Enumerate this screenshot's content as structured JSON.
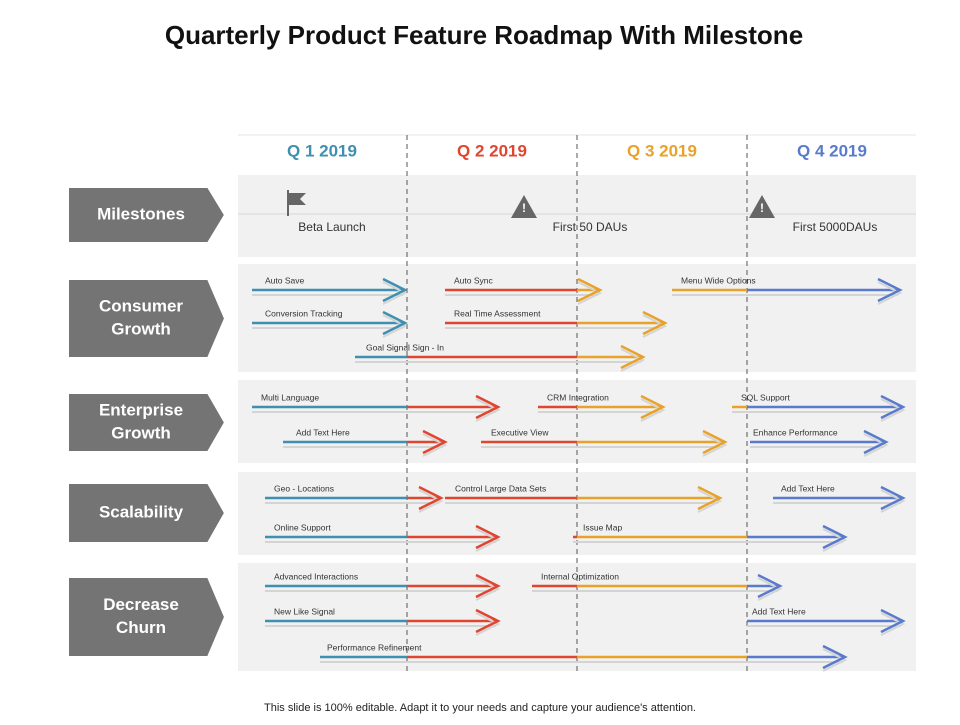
{
  "header": {
    "title": "Quarterly Product Feature Roadmap With Milestone"
  },
  "quarters": [
    {
      "label": "Q 1  2019",
      "color": "#3e8fb0"
    },
    {
      "label": "Q 2  2019",
      "color": "#e0452f"
    },
    {
      "label": "Q 3  2019",
      "color": "#e8a22a"
    },
    {
      "label": "Q 4  2019",
      "color": "#5a7bcc"
    }
  ],
  "milestones": {
    "label": [
      "Milestones"
    ],
    "items": [
      "Beta Launch",
      "First 50 DAUs",
      "First 5000DAUs"
    ]
  },
  "rows": [
    {
      "label": [
        "Consumer",
        "Growth"
      ],
      "tasks": [
        "Auto Save",
        "Auto Sync",
        "Menu Wide Options",
        "Conversion Tracking",
        "Real Time Assessment",
        "Goal Signal Sign - In"
      ]
    },
    {
      "label": [
        "Enterprise",
        "Growth"
      ],
      "tasks": [
        "Multi Language",
        "CRM Integration",
        "SQL Support",
        "Add Text Here",
        "Executive View",
        "Enhance Performance"
      ]
    },
    {
      "label": [
        "Scalability"
      ],
      "tasks": [
        "Geo - Locations",
        "Control Large Data Sets",
        "Add Text Here",
        "Online Support",
        "Issue Map"
      ]
    },
    {
      "label": [
        "Decrease",
        "Churn"
      ],
      "tasks": [
        "Advanced Interactions",
        "Internal Optimization",
        "New Like Signal",
        "Add Text Here",
        "Performance Refinement"
      ]
    }
  ],
  "footer": "This slide is 100% editable. Adapt it to your needs and capture your audience's attention."
}
